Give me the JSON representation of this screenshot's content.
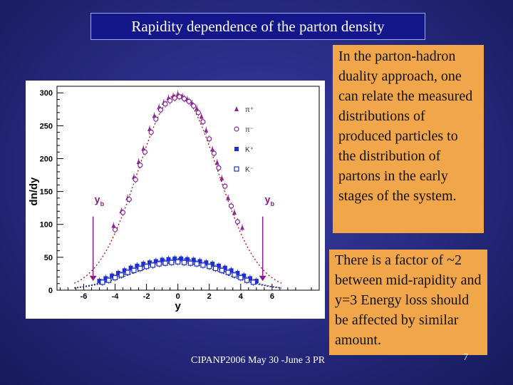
{
  "slide": {
    "title": "Rapidity dependence of the parton density",
    "note1": "In the parton-hadron duality approach, one can relate the measured distributions of produced particles to the distribution of partons in the early stages of the system.",
    "note2": "There is a factor of ~2 between mid-rapidity and y=3 Energy loss should be affected  by similar amount.",
    "footer": "CIPANP2006 May 30 -June 3 PR",
    "page_number": "7"
  },
  "colors": {
    "title_bg": "#13178a",
    "note_bg": "#f2a64a",
    "pion_marker": "#8a2a9a",
    "kaon_marker": "#1f2fcf",
    "pion_fit": "#b02020",
    "kaon_fit": "#1a3ad0",
    "arrow": "#8a1a8a"
  },
  "chart_data": {
    "type": "scatter",
    "xlabel": "y",
    "ylabel": "dn/dy",
    "xlim": [
      -7.7,
      9.0
    ],
    "ylim": [
      0,
      310
    ],
    "xticks": [
      -6,
      -4,
      -2,
      0,
      2,
      4,
      6
    ],
    "yticks": [
      0,
      50,
      100,
      150,
      200,
      250,
      300
    ],
    "beam_rapidity_label": "y",
    "beam_rapidity_subscript": "b",
    "beam_rapidity": [
      -5.4,
      5.4
    ],
    "legend": [
      {
        "label": "π⁺",
        "marker": "triangle"
      },
      {
        "label": "π⁻",
        "marker": "circle-open"
      },
      {
        "label": "K⁺",
        "marker": "square"
      },
      {
        "label": "K⁻",
        "marker": "square-open"
      }
    ],
    "series": [
      {
        "name": "π⁺",
        "x": [
          -4.1,
          -3.6,
          -3.2,
          -2.8,
          -2.5,
          -2.2,
          -1.8,
          -1.5,
          -1.2,
          -0.9,
          -0.6,
          -0.3,
          0.0,
          0.3,
          0.6,
          0.9,
          1.2,
          1.5,
          1.8,
          2.2,
          2.5,
          2.8,
          3.2,
          3.6,
          4.1
        ],
        "y": [
          98,
          120,
          140,
          172,
          195,
          215,
          245,
          265,
          278,
          285,
          292,
          295,
          298,
          294,
          290,
          284,
          276,
          264,
          243,
          214,
          194,
          170,
          140,
          118,
          95
        ]
      },
      {
        "name": "π⁻",
        "x": [
          -4.0,
          -3.5,
          -3.1,
          -2.7,
          -2.4,
          -2.1,
          -1.7,
          -1.4,
          -1.1,
          -0.8,
          -0.5,
          -0.2,
          0.1,
          0.4,
          0.7,
          1.0,
          1.3,
          1.6,
          2.0,
          2.3,
          2.6,
          3.0,
          3.4,
          3.8
        ],
        "y": [
          92,
          118,
          138,
          168,
          190,
          210,
          240,
          260,
          274,
          283,
          288,
          292,
          294,
          291,
          287,
          280,
          270,
          256,
          230,
          208,
          186,
          158,
          128,
          104
        ]
      },
      {
        "name": "K⁺",
        "x": [
          -5.0,
          -4.6,
          -4.2,
          -3.8,
          -3.4,
          -3.0,
          -2.6,
          -2.2,
          -1.8,
          -1.4,
          -1.0,
          -0.6,
          -0.2,
          0.2,
          0.6,
          1.0,
          1.4,
          1.8,
          2.2,
          2.6,
          3.0,
          3.4,
          3.8,
          4.2,
          4.6,
          5.0
        ],
        "y": [
          14,
          18,
          22,
          26,
          30,
          34,
          37,
          40,
          42,
          44,
          46,
          47,
          48,
          48,
          47,
          46,
          44,
          42,
          40,
          37,
          34,
          30,
          26,
          22,
          18,
          14
        ]
      },
      {
        "name": "K⁻",
        "x": [
          -4.8,
          -4.4,
          -4.0,
          -3.6,
          -3.2,
          -2.8,
          -2.4,
          -2.0,
          -1.6,
          -1.2,
          -0.8,
          -0.4,
          0.0,
          0.4,
          0.8,
          1.2,
          1.6,
          2.0,
          2.4,
          2.8,
          3.2,
          3.6,
          4.0,
          4.4,
          4.8
        ],
        "y": [
          12,
          15,
          19,
          23,
          27,
          30,
          33,
          36,
          38,
          40,
          41,
          42,
          43,
          42,
          41,
          40,
          38,
          36,
          33,
          30,
          27,
          23,
          19,
          15,
          12
        ]
      }
    ],
    "fits": [
      {
        "name": "pion fit",
        "amplitude": 298,
        "sigma": 2.55
      },
      {
        "name": "kaon fit upper",
        "amplitude": 48,
        "sigma": 2.9
      },
      {
        "name": "kaon fit lower",
        "amplitude": 42,
        "sigma": 2.9
      }
    ]
  }
}
